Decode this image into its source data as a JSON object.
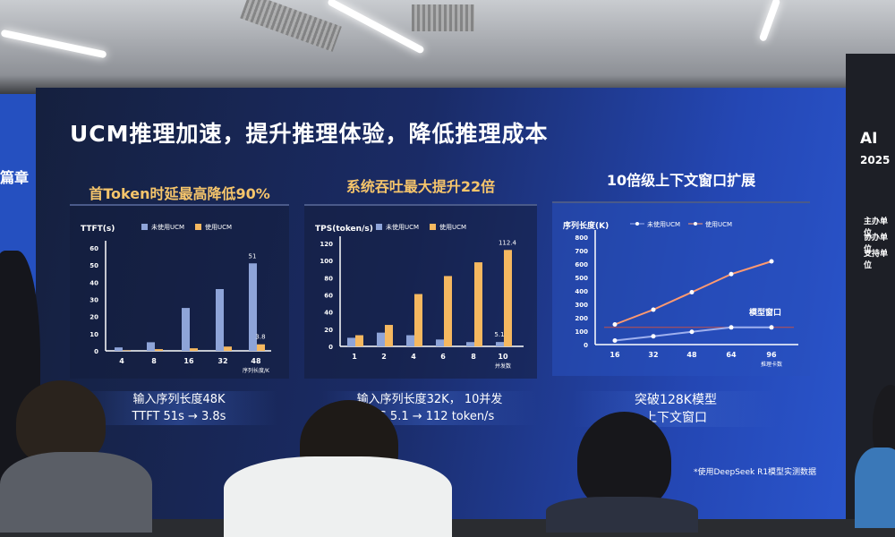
{
  "slide": {
    "title": "UCM推理加速，提升推理体验，降低推理成本",
    "footnote": "*使用DeepSeek R1模型实测数据",
    "left_edge_text": "篇章",
    "right_screen": {
      "title": "AI",
      "subtitle": "2025",
      "lines": [
        "主办单位",
        "协办单位",
        "支持单位"
      ]
    }
  },
  "panels": [
    {
      "title": "首Token时延最高降低90%",
      "caption": [
        "输入序列长度48K",
        "TTFT 51s → 3.8s"
      ]
    },
    {
      "title": "系统吞吐最大提升22倍",
      "caption": [
        "输入序列长度32K， 10并发",
        "TPS 5.1 → 112 token/s"
      ]
    },
    {
      "title": "10倍级上下文窗口扩展",
      "caption": [
        "突破128K模型",
        "上下文窗口"
      ]
    }
  ],
  "colors": {
    "without_ucm": "#8ea4d8",
    "with_ucm": "#f5b860",
    "line_without": "#9fb0ee",
    "line_with": "#ff9a70",
    "model_window": "#c0504d"
  },
  "chart_data": [
    {
      "type": "bar",
      "ylabel": "TTFT(s)",
      "xlabel": "序列长度/K",
      "categories": [
        "4",
        "8",
        "16",
        "32",
        "48"
      ],
      "ylim": [
        0,
        60
      ],
      "yticks": [
        0,
        10,
        20,
        30,
        40,
        50,
        60
      ],
      "series": [
        {
          "name": "未使用UCM",
          "values": [
            2,
            5,
            25,
            36,
            51
          ]
        },
        {
          "name": "使用UCM",
          "values": [
            0.3,
            1,
            1.5,
            2.5,
            3.8
          ]
        }
      ],
      "data_labels": [
        {
          "series": 0,
          "index": 4,
          "text": "51"
        },
        {
          "series": 1,
          "index": 4,
          "text": "3.8"
        }
      ],
      "legend": "top",
      "grid": false
    },
    {
      "type": "bar",
      "ylabel": "TPS(token/s)",
      "xlabel": "并发数",
      "categories": [
        "1",
        "2",
        "4",
        "6",
        "8",
        "10"
      ],
      "ylim": [
        0,
        120
      ],
      "yticks": [
        0,
        20,
        40,
        60,
        80,
        100,
        120
      ],
      "series": [
        {
          "name": "未使用UCM",
          "values": [
            10,
            16,
            13,
            8,
            5,
            5.1
          ]
        },
        {
          "name": "使用UCM",
          "values": [
            13,
            25,
            61,
            82,
            98,
            112.4
          ]
        }
      ],
      "data_labels": [
        {
          "series": 1,
          "index": 5,
          "text": "112.4"
        },
        {
          "series": 0,
          "index": 5,
          "text": "5.1"
        }
      ],
      "legend": "top",
      "grid": false
    },
    {
      "type": "line",
      "ylabel": "序列长度(K)",
      "xlabel": "推理卡数",
      "categories": [
        "16",
        "32",
        "48",
        "64",
        "96"
      ],
      "ylim": [
        0,
        800
      ],
      "yticks": [
        0,
        100,
        200,
        300,
        400,
        500,
        600,
        700,
        800
      ],
      "series": [
        {
          "name": "未使用UCM",
          "values": [
            30,
            62,
            95,
            128,
            128
          ]
        },
        {
          "name": "使用UCM",
          "values": [
            150,
            260,
            390,
            525,
            620
          ]
        }
      ],
      "reference_line": {
        "label": "模型窗口",
        "value": 128
      },
      "legend": "top",
      "grid": false
    }
  ]
}
